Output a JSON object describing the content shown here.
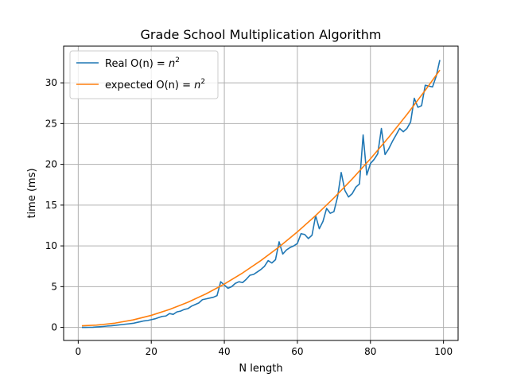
{
  "chart_data": {
    "type": "line",
    "title": "Grade School Multiplication Algorithm",
    "xlabel": "N length",
    "ylabel": "time (ms)",
    "xlim": [
      -4,
      104
    ],
    "ylim": [
      -1.6,
      34.5
    ],
    "x_ticks": [
      0,
      20,
      40,
      60,
      80,
      100
    ],
    "y_ticks": [
      0,
      5,
      10,
      15,
      20,
      25,
      30
    ],
    "grid": true,
    "legend_position": "upper-left",
    "series": [
      {
        "name": "Real O(n) = n^2",
        "legend_prefix": "Real O(n) = ",
        "color": "#1f77b4",
        "x": [
          1,
          2,
          3,
          4,
          5,
          6,
          7,
          8,
          9,
          10,
          11,
          12,
          13,
          14,
          15,
          16,
          17,
          18,
          19,
          20,
          21,
          22,
          23,
          24,
          25,
          26,
          27,
          28,
          29,
          30,
          31,
          32,
          33,
          34,
          35,
          36,
          37,
          38,
          39,
          40,
          41,
          42,
          43,
          44,
          45,
          46,
          47,
          48,
          49,
          50,
          51,
          52,
          53,
          54,
          55,
          56,
          57,
          58,
          59,
          60,
          61,
          62,
          63,
          64,
          65,
          66,
          67,
          68,
          69,
          70,
          71,
          72,
          73,
          74,
          75,
          76,
          77,
          78,
          79,
          80,
          81,
          82,
          83,
          84,
          85,
          86,
          87,
          88,
          89,
          90,
          91,
          92,
          93,
          94,
          95,
          96,
          97,
          98,
          99
        ],
        "y": [
          0.0,
          0.0,
          0.01,
          0.02,
          0.05,
          0.08,
          0.12,
          0.17,
          0.2,
          0.25,
          0.3,
          0.35,
          0.4,
          0.45,
          0.5,
          0.6,
          0.7,
          0.8,
          0.85,
          0.95,
          1.05,
          1.2,
          1.35,
          1.4,
          1.7,
          1.6,
          1.9,
          2.0,
          2.2,
          2.3,
          2.6,
          2.8,
          3.0,
          3.4,
          3.5,
          3.6,
          3.7,
          3.9,
          5.6,
          5.2,
          4.8,
          5.0,
          5.4,
          5.6,
          5.5,
          5.9,
          6.4,
          6.5,
          6.8,
          7.1,
          7.5,
          8.2,
          7.9,
          8.3,
          10.5,
          9.0,
          9.5,
          9.8,
          10.0,
          10.3,
          11.5,
          11.4,
          10.9,
          11.3,
          13.7,
          12.1,
          13.0,
          14.6,
          14.0,
          14.2,
          16.0,
          19.0,
          16.8,
          16.0,
          16.4,
          17.2,
          17.6,
          23.6,
          18.7,
          20.1,
          20.6,
          21.3,
          24.4,
          21.2,
          21.9,
          22.8,
          23.6,
          24.4,
          24.0,
          24.4,
          25.2,
          28.1,
          27.0,
          27.2,
          29.7,
          29.6,
          29.5,
          30.8,
          32.8
        ]
      },
      {
        "name": "expected O(n) = n^2",
        "legend_prefix": "expected O(n) = ",
        "color": "#ff7f0e",
        "formula": "0.0032 * n^2 + 0.2",
        "x": [
          1,
          5,
          10,
          15,
          20,
          25,
          30,
          35,
          40,
          45,
          50,
          55,
          60,
          65,
          70,
          75,
          80,
          85,
          90,
          95,
          99
        ],
        "y": [
          0.2,
          0.28,
          0.52,
          0.92,
          1.48,
          2.2,
          3.08,
          4.12,
          5.32,
          6.68,
          8.2,
          9.88,
          11.72,
          13.72,
          15.88,
          18.2,
          20.68,
          23.32,
          26.12,
          29.08,
          31.56
        ]
      }
    ]
  }
}
